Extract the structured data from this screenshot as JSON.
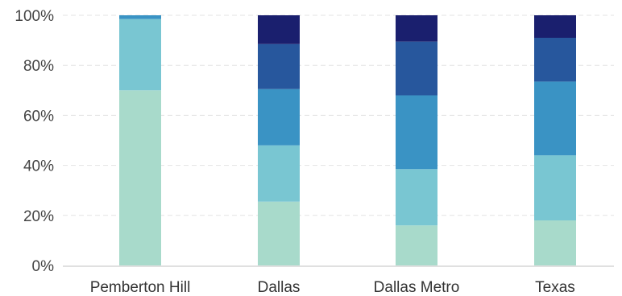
{
  "chart_data": {
    "type": "bar",
    "stacked": true,
    "normalized": true,
    "title": "",
    "xlabel": "",
    "ylabel": "",
    "ylim": [
      0,
      100
    ],
    "yticks": [
      "0%",
      "20%",
      "40%",
      "60%",
      "80%",
      "100%"
    ],
    "yticks_values": [
      0,
      20,
      40,
      60,
      80,
      100
    ],
    "grid": true,
    "legend": "none",
    "categories": [
      "Pemberton Hill",
      "Dallas",
      "Dallas Metro",
      "Texas"
    ],
    "series": [
      {
        "color": "#a8dacb",
        "values": [
          70,
          25.5,
          16,
          18
        ]
      },
      {
        "color": "#79c6d2",
        "values": [
          28.5,
          22.5,
          22.5,
          26
        ]
      },
      {
        "color": "#3a93c4",
        "values": [
          1.5,
          22.5,
          29.5,
          29.5
        ]
      },
      {
        "color": "#27579d",
        "values": [
          0,
          18,
          21.5,
          17.5
        ]
      },
      {
        "color": "#1a1f6e",
        "values": [
          0,
          11.5,
          10.5,
          9
        ]
      }
    ]
  }
}
